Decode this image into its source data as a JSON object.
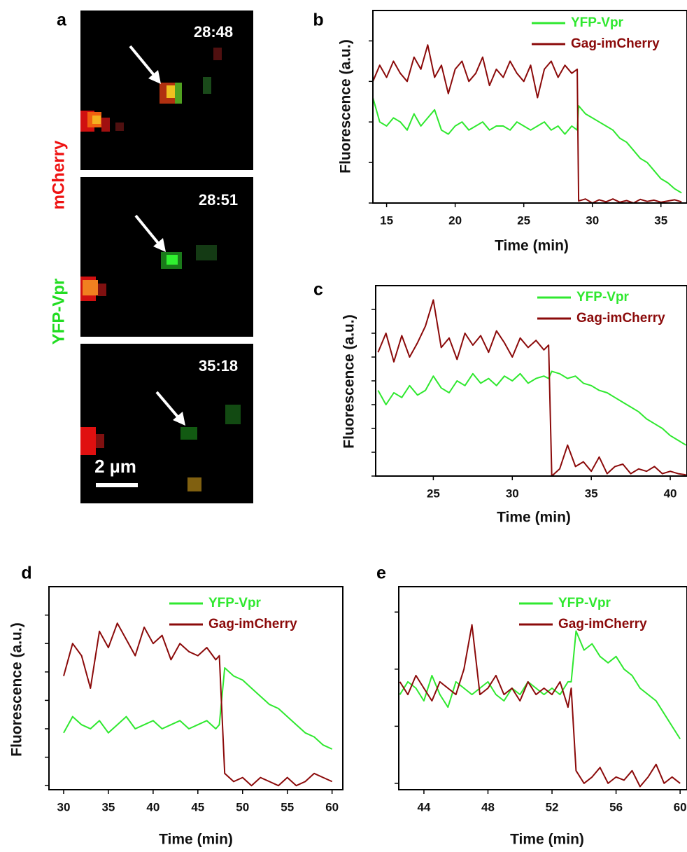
{
  "panel_a": {
    "panel": "a",
    "channels": [
      "mCherry",
      "YFP-Vpr"
    ],
    "timestamps": [
      "28:48",
      "28:51",
      "35:18"
    ],
    "scale_bar": "2 µm"
  },
  "chart_data": [
    {
      "type": "line",
      "panel": "b",
      "xlabel": "Time (min)",
      "ylabel": "Fluorescence (a.u.)",
      "legend": "upper right",
      "xlim": [
        14,
        36.9
      ],
      "xticks": [
        15,
        20,
        25,
        30,
        35
      ],
      "ylim": [
        0,
        4.75
      ],
      "yticks": [
        0,
        1,
        2,
        3,
        4
      ],
      "x": [
        14,
        14.5,
        15,
        15.5,
        16,
        16.5,
        17,
        17.5,
        18,
        18.5,
        19,
        19.5,
        20,
        20.5,
        21,
        21.5,
        22,
        22.5,
        23,
        23.5,
        24,
        24.5,
        25,
        25.5,
        26,
        26.5,
        27,
        27.5,
        28,
        28.5,
        28.9,
        29,
        29.5,
        30,
        30.5,
        31,
        31.5,
        32,
        32.5,
        33,
        33.5,
        34,
        34.5,
        35,
        35.5,
        36,
        36.5
      ],
      "series": [
        {
          "name": "YFP-Vpr",
          "color": "#2fe82f",
          "values": [
            2.6,
            2.0,
            1.9,
            2.1,
            2.0,
            1.8,
            2.2,
            1.9,
            2.1,
            2.3,
            1.8,
            1.7,
            1.9,
            2.0,
            1.8,
            1.9,
            2.0,
            1.8,
            1.9,
            1.9,
            1.8,
            2.0,
            1.9,
            1.8,
            1.9,
            2.0,
            1.8,
            1.9,
            1.7,
            1.9,
            1.8,
            2.4,
            2.2,
            2.1,
            2.0,
            1.9,
            1.8,
            1.6,
            1.5,
            1.3,
            1.1,
            1.0,
            0.8,
            0.6,
            0.5,
            0.35,
            0.25
          ]
        },
        {
          "name": "Gag-imCherry",
          "color": "#8b0a0a",
          "values": [
            3.0,
            3.4,
            3.1,
            3.5,
            3.2,
            3.0,
            3.6,
            3.3,
            3.9,
            3.1,
            3.4,
            2.7,
            3.3,
            3.5,
            3.0,
            3.2,
            3.6,
            2.9,
            3.3,
            3.1,
            3.5,
            3.2,
            3.0,
            3.4,
            2.6,
            3.3,
            3.5,
            3.1,
            3.4,
            3.2,
            3.3,
            0.05,
            0.1,
            0.0,
            0.08,
            0.03,
            0.1,
            0.02,
            0.06,
            0.0,
            0.09,
            0.04,
            0.07,
            0.02,
            0.05,
            0.08,
            0.03
          ]
        }
      ]
    },
    {
      "type": "line",
      "panel": "c",
      "xlabel": "Time (min)",
      "ylabel": "Fluorescence (a.u.)",
      "legend": "upper right",
      "xlim": [
        21.35,
        41.06
      ],
      "xticks": [
        25,
        30,
        35,
        40
      ],
      "ylim": [
        0,
        8
      ],
      "yticks": [
        0,
        1,
        2,
        3,
        4,
        5,
        6,
        7
      ],
      "x": [
        21.5,
        22,
        22.5,
        23,
        23.5,
        24,
        24.5,
        25,
        25.5,
        26,
        26.5,
        27,
        27.5,
        28,
        28.5,
        29,
        29.5,
        30,
        30.5,
        31,
        31.5,
        32,
        32.3,
        32.5,
        33,
        33.5,
        34,
        34.5,
        35,
        35.5,
        36,
        36.5,
        37,
        37.5,
        38,
        38.5,
        39,
        39.5,
        40,
        40.5,
        41
      ],
      "series": [
        {
          "name": "YFP-Vpr",
          "color": "#2fe82f",
          "values": [
            3.6,
            3.0,
            3.5,
            3.3,
            3.8,
            3.4,
            3.6,
            4.2,
            3.7,
            3.5,
            4.0,
            3.8,
            4.3,
            3.9,
            4.1,
            3.8,
            4.2,
            4.0,
            4.3,
            3.9,
            4.1,
            4.2,
            4.1,
            4.4,
            4.3,
            4.1,
            4.2,
            3.9,
            3.8,
            3.6,
            3.5,
            3.3,
            3.1,
            2.9,
            2.7,
            2.4,
            2.2,
            2.0,
            1.7,
            1.5,
            1.3
          ]
        },
        {
          "name": "Gag-imCherry",
          "color": "#8b0a0a",
          "values": [
            5.2,
            6.0,
            4.8,
            5.9,
            5.0,
            5.6,
            6.3,
            7.4,
            5.4,
            5.8,
            4.9,
            6.0,
            5.5,
            5.9,
            5.2,
            6.1,
            5.6,
            5.0,
            5.8,
            5.4,
            5.7,
            5.3,
            5.5,
            0.0,
            0.3,
            1.3,
            0.4,
            0.6,
            0.2,
            0.8,
            0.1,
            0.4,
            0.5,
            0.1,
            0.3,
            0.2,
            0.4,
            0.1,
            0.2,
            0.1,
            0.05
          ]
        }
      ]
    },
    {
      "type": "line",
      "panel": "d",
      "xlabel": "Time (min)",
      "ylabel": "Fluorescence (a.u.)",
      "legend": "upper right",
      "xlim": [
        28.36,
        61.2
      ],
      "xticks": [
        30,
        35,
        40,
        45,
        50,
        55,
        60
      ],
      "ylim": [
        0,
        5
      ],
      "yticks": [
        0.1,
        0.8,
        1.5,
        2.2,
        2.9,
        3.6,
        4.3
      ],
      "x": [
        30,
        31,
        32,
        33,
        34,
        35,
        36,
        37,
        38,
        39,
        40,
        41,
        42,
        43,
        44,
        45,
        46,
        47,
        47.4,
        48,
        49,
        50,
        51,
        52,
        53,
        54,
        55,
        56,
        57,
        58,
        59,
        60
      ],
      "series": [
        {
          "name": "YFP-Vpr",
          "color": "#2fe82f",
          "values": [
            1.4,
            1.8,
            1.6,
            1.5,
            1.7,
            1.4,
            1.6,
            1.8,
            1.5,
            1.6,
            1.7,
            1.5,
            1.6,
            1.7,
            1.5,
            1.6,
            1.7,
            1.5,
            1.6,
            3.0,
            2.8,
            2.7,
            2.5,
            2.3,
            2.1,
            2.0,
            1.8,
            1.6,
            1.4,
            1.3,
            1.1,
            1.0
          ]
        },
        {
          "name": "Gag-imCherry",
          "color": "#8b0a0a",
          "values": [
            2.8,
            3.6,
            3.3,
            2.5,
            3.9,
            3.5,
            4.1,
            3.7,
            3.3,
            4.0,
            3.6,
            3.8,
            3.2,
            3.6,
            3.4,
            3.3,
            3.5,
            3.2,
            3.3,
            0.4,
            0.2,
            0.3,
            0.1,
            0.3,
            0.2,
            0.1,
            0.3,
            0.1,
            0.2,
            0.4,
            0.3,
            0.2
          ]
        }
      ]
    },
    {
      "type": "line",
      "panel": "e",
      "xlabel": "Time (min)",
      "legend": "upper right",
      "xlim": [
        42.43,
        60.43
      ],
      "xticks": [
        44,
        48,
        52,
        56,
        60
      ],
      "ylim": [
        0,
        3.2
      ],
      "yticks": [
        0.1,
        1.0,
        1.9,
        2.8
      ],
      "x": [
        42.5,
        43,
        43.5,
        44,
        44.5,
        45,
        45.5,
        46,
        46.5,
        47,
        47.5,
        48,
        48.5,
        49,
        49.5,
        50,
        50.5,
        51,
        51.5,
        52,
        52.5,
        53,
        53.2,
        53.5,
        54,
        54.5,
        55,
        55.5,
        56,
        56.5,
        57,
        57.5,
        58,
        58.5,
        59,
        59.5,
        60
      ],
      "series": [
        {
          "name": "YFP-Vpr",
          "color": "#2fe82f",
          "values": [
            1.5,
            1.7,
            1.6,
            1.4,
            1.8,
            1.5,
            1.3,
            1.7,
            1.6,
            1.5,
            1.6,
            1.7,
            1.5,
            1.4,
            1.6,
            1.5,
            1.7,
            1.6,
            1.5,
            1.6,
            1.5,
            1.7,
            1.7,
            2.5,
            2.2,
            2.3,
            2.1,
            2.0,
            2.1,
            1.9,
            1.8,
            1.6,
            1.5,
            1.4,
            1.2,
            1.0,
            0.8
          ]
        },
        {
          "name": "Gag-imCherry",
          "color": "#8b0a0a",
          "values": [
            1.7,
            1.5,
            1.8,
            1.6,
            1.4,
            1.7,
            1.6,
            1.5,
            1.9,
            2.6,
            1.5,
            1.6,
            1.8,
            1.5,
            1.6,
            1.4,
            1.7,
            1.5,
            1.6,
            1.5,
            1.7,
            1.3,
            1.6,
            0.3,
            0.1,
            0.2,
            0.35,
            0.1,
            0.2,
            0.15,
            0.3,
            0.05,
            0.2,
            0.4,
            0.1,
            0.2,
            0.1
          ]
        }
      ]
    }
  ]
}
